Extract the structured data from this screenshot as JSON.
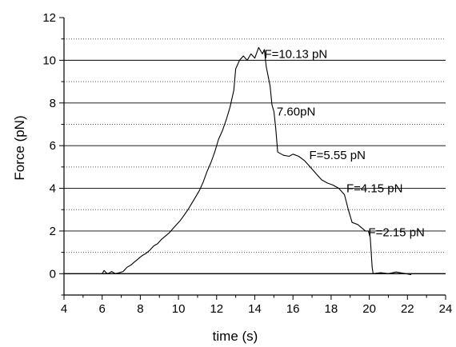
{
  "chart_data": {
    "type": "line",
    "title": "",
    "xlabel": "time (s)",
    "ylabel": "Force (pN)",
    "xlim": [
      4,
      24
    ],
    "ylim": [
      -1,
      12
    ],
    "x_ticks": [
      4,
      6,
      8,
      10,
      12,
      14,
      16,
      18,
      20,
      22,
      24
    ],
    "y_ticks": [
      0,
      2,
      4,
      6,
      8,
      10,
      12
    ],
    "grid": {
      "solid_y": [
        0,
        2,
        4,
        6,
        8,
        10
      ],
      "dotted_y": [
        1,
        3,
        5,
        7,
        9,
        11
      ]
    },
    "series": [
      {
        "color": "#000000",
        "points": [
          [
            6.0,
            0.0
          ],
          [
            6.1,
            0.15
          ],
          [
            6.2,
            0.05
          ],
          [
            6.3,
            0.0
          ],
          [
            6.5,
            0.1
          ],
          [
            6.7,
            0.0
          ],
          [
            6.9,
            0.05
          ],
          [
            7.1,
            0.1
          ],
          [
            7.3,
            0.3
          ],
          [
            7.5,
            0.4
          ],
          [
            7.7,
            0.55
          ],
          [
            7.9,
            0.7
          ],
          [
            8.1,
            0.85
          ],
          [
            8.3,
            0.95
          ],
          [
            8.5,
            1.1
          ],
          [
            8.7,
            1.3
          ],
          [
            8.9,
            1.4
          ],
          [
            9.1,
            1.6
          ],
          [
            9.3,
            1.75
          ],
          [
            9.5,
            1.9
          ],
          [
            9.7,
            2.1
          ],
          [
            9.9,
            2.3
          ],
          [
            10.1,
            2.5
          ],
          [
            10.3,
            2.75
          ],
          [
            10.5,
            3.0
          ],
          [
            10.7,
            3.3
          ],
          [
            10.9,
            3.6
          ],
          [
            11.1,
            3.9
          ],
          [
            11.3,
            4.3
          ],
          [
            11.5,
            4.8
          ],
          [
            11.7,
            5.2
          ],
          [
            11.9,
            5.7
          ],
          [
            12.1,
            6.3
          ],
          [
            12.3,
            6.7
          ],
          [
            12.5,
            7.2
          ],
          [
            12.7,
            7.8
          ],
          [
            12.9,
            8.6
          ],
          [
            13.0,
            9.6
          ],
          [
            13.2,
            10.0
          ],
          [
            13.4,
            10.2
          ],
          [
            13.6,
            10.0
          ],
          [
            13.8,
            10.3
          ],
          [
            14.0,
            10.1
          ],
          [
            14.2,
            10.6
          ],
          [
            14.4,
            10.3
          ],
          [
            14.5,
            10.5
          ],
          [
            14.6,
            9.7
          ],
          [
            14.8,
            8.8
          ],
          [
            14.9,
            7.9
          ],
          [
            15.0,
            7.6
          ],
          [
            15.1,
            6.8
          ],
          [
            15.2,
            5.7
          ],
          [
            15.5,
            5.55
          ],
          [
            15.8,
            5.5
          ],
          [
            16.0,
            5.6
          ],
          [
            16.3,
            5.5
          ],
          [
            16.6,
            5.3
          ],
          [
            16.9,
            5.0
          ],
          [
            17.2,
            4.7
          ],
          [
            17.5,
            4.4
          ],
          [
            17.8,
            4.25
          ],
          [
            18.1,
            4.15
          ],
          [
            18.4,
            4.0
          ],
          [
            18.7,
            3.7
          ],
          [
            18.9,
            3.0
          ],
          [
            19.1,
            2.4
          ],
          [
            19.4,
            2.3
          ],
          [
            19.6,
            2.15
          ],
          [
            19.8,
            2.0
          ],
          [
            19.95,
            2.0
          ],
          [
            20.05,
            1.7
          ],
          [
            20.15,
            0.3
          ],
          [
            20.2,
            0.0
          ],
          [
            20.6,
            0.05
          ],
          [
            21.0,
            0.0
          ],
          [
            21.4,
            0.08
          ],
          [
            21.8,
            0.02
          ],
          [
            22.2,
            -0.05
          ]
        ]
      }
    ],
    "annotations": [
      {
        "text": "F=10.13 pN",
        "x": 14.5,
        "y": 10.3
      },
      {
        "text": "7.60pN",
        "x": 15.15,
        "y": 7.6
      },
      {
        "text": "F=5.55 pN",
        "x": 16.85,
        "y": 5.55
      },
      {
        "text": "F=4.15 pN",
        "x": 18.8,
        "y": 4.0
      },
      {
        "text": "F=2.15 pN",
        "x": 19.95,
        "y": 1.95
      }
    ]
  }
}
